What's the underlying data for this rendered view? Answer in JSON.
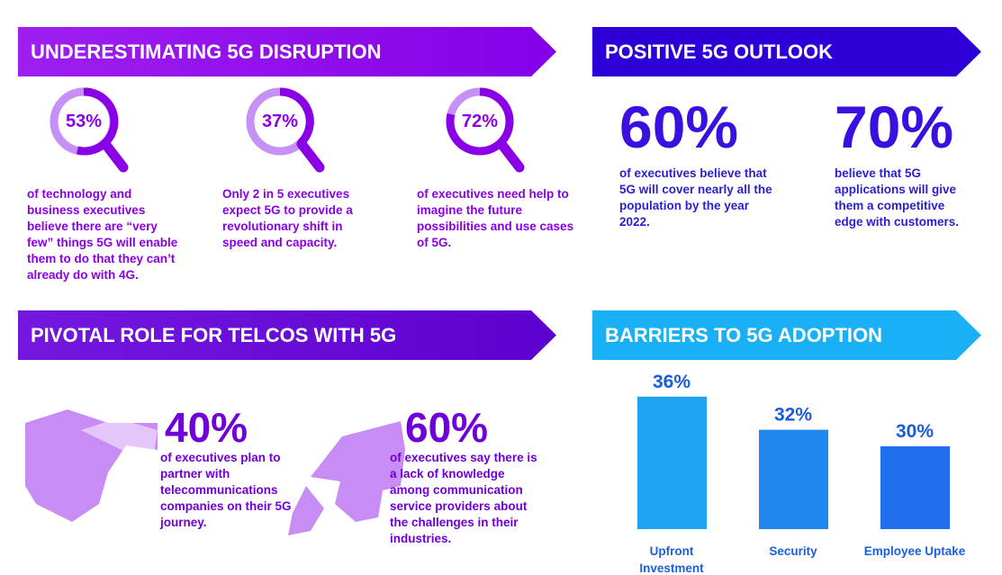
{
  "disruption": {
    "title": "UNDERESTIMATING 5G DISRUPTION",
    "stats": [
      {
        "value": "53%",
        "text": "of technology and business executives believe there are “very few” things 5G will enable them to do that they can’t already do with 4G."
      },
      {
        "value": "37%",
        "text": "Only 2 in 5 executives expect 5G to provide a revolutionary shift in speed and capacity."
      },
      {
        "value": "72%",
        "text": "of executives need help to imagine the future possibilities and use cases of 5G."
      }
    ]
  },
  "outlook": {
    "title": "POSITIVE 5G OUTLOOK",
    "stats": [
      {
        "value": "60%",
        "text": "of executives believe that 5G will cover nearly all the population by the year 2022."
      },
      {
        "value": "70%",
        "text": "believe that 5G applications will give them a competitive edge with customers."
      }
    ]
  },
  "telcos": {
    "title": "PIVOTAL ROLE FOR TELCOS WITH 5G",
    "stats": [
      {
        "value": "40%",
        "text": "of executives plan to partner with telecommunications companies on their 5G journey."
      },
      {
        "value": "60%",
        "text": "of executives say there is a lack of knowledge among communication service providers about the challenges in their industries."
      }
    ]
  },
  "chart_data": {
    "type": "bar",
    "title": "BARRIERS TO 5G ADOPTION",
    "categories": [
      "Upfront Investment",
      "Security",
      "Employee Uptake"
    ],
    "values": [
      36,
      32,
      30
    ],
    "value_labels": [
      "36%",
      "32%",
      "30%"
    ],
    "colors": [
      "#1ea4f2",
      "#1f88ee",
      "#1f6fee"
    ],
    "ylim": [
      20,
      40
    ]
  }
}
